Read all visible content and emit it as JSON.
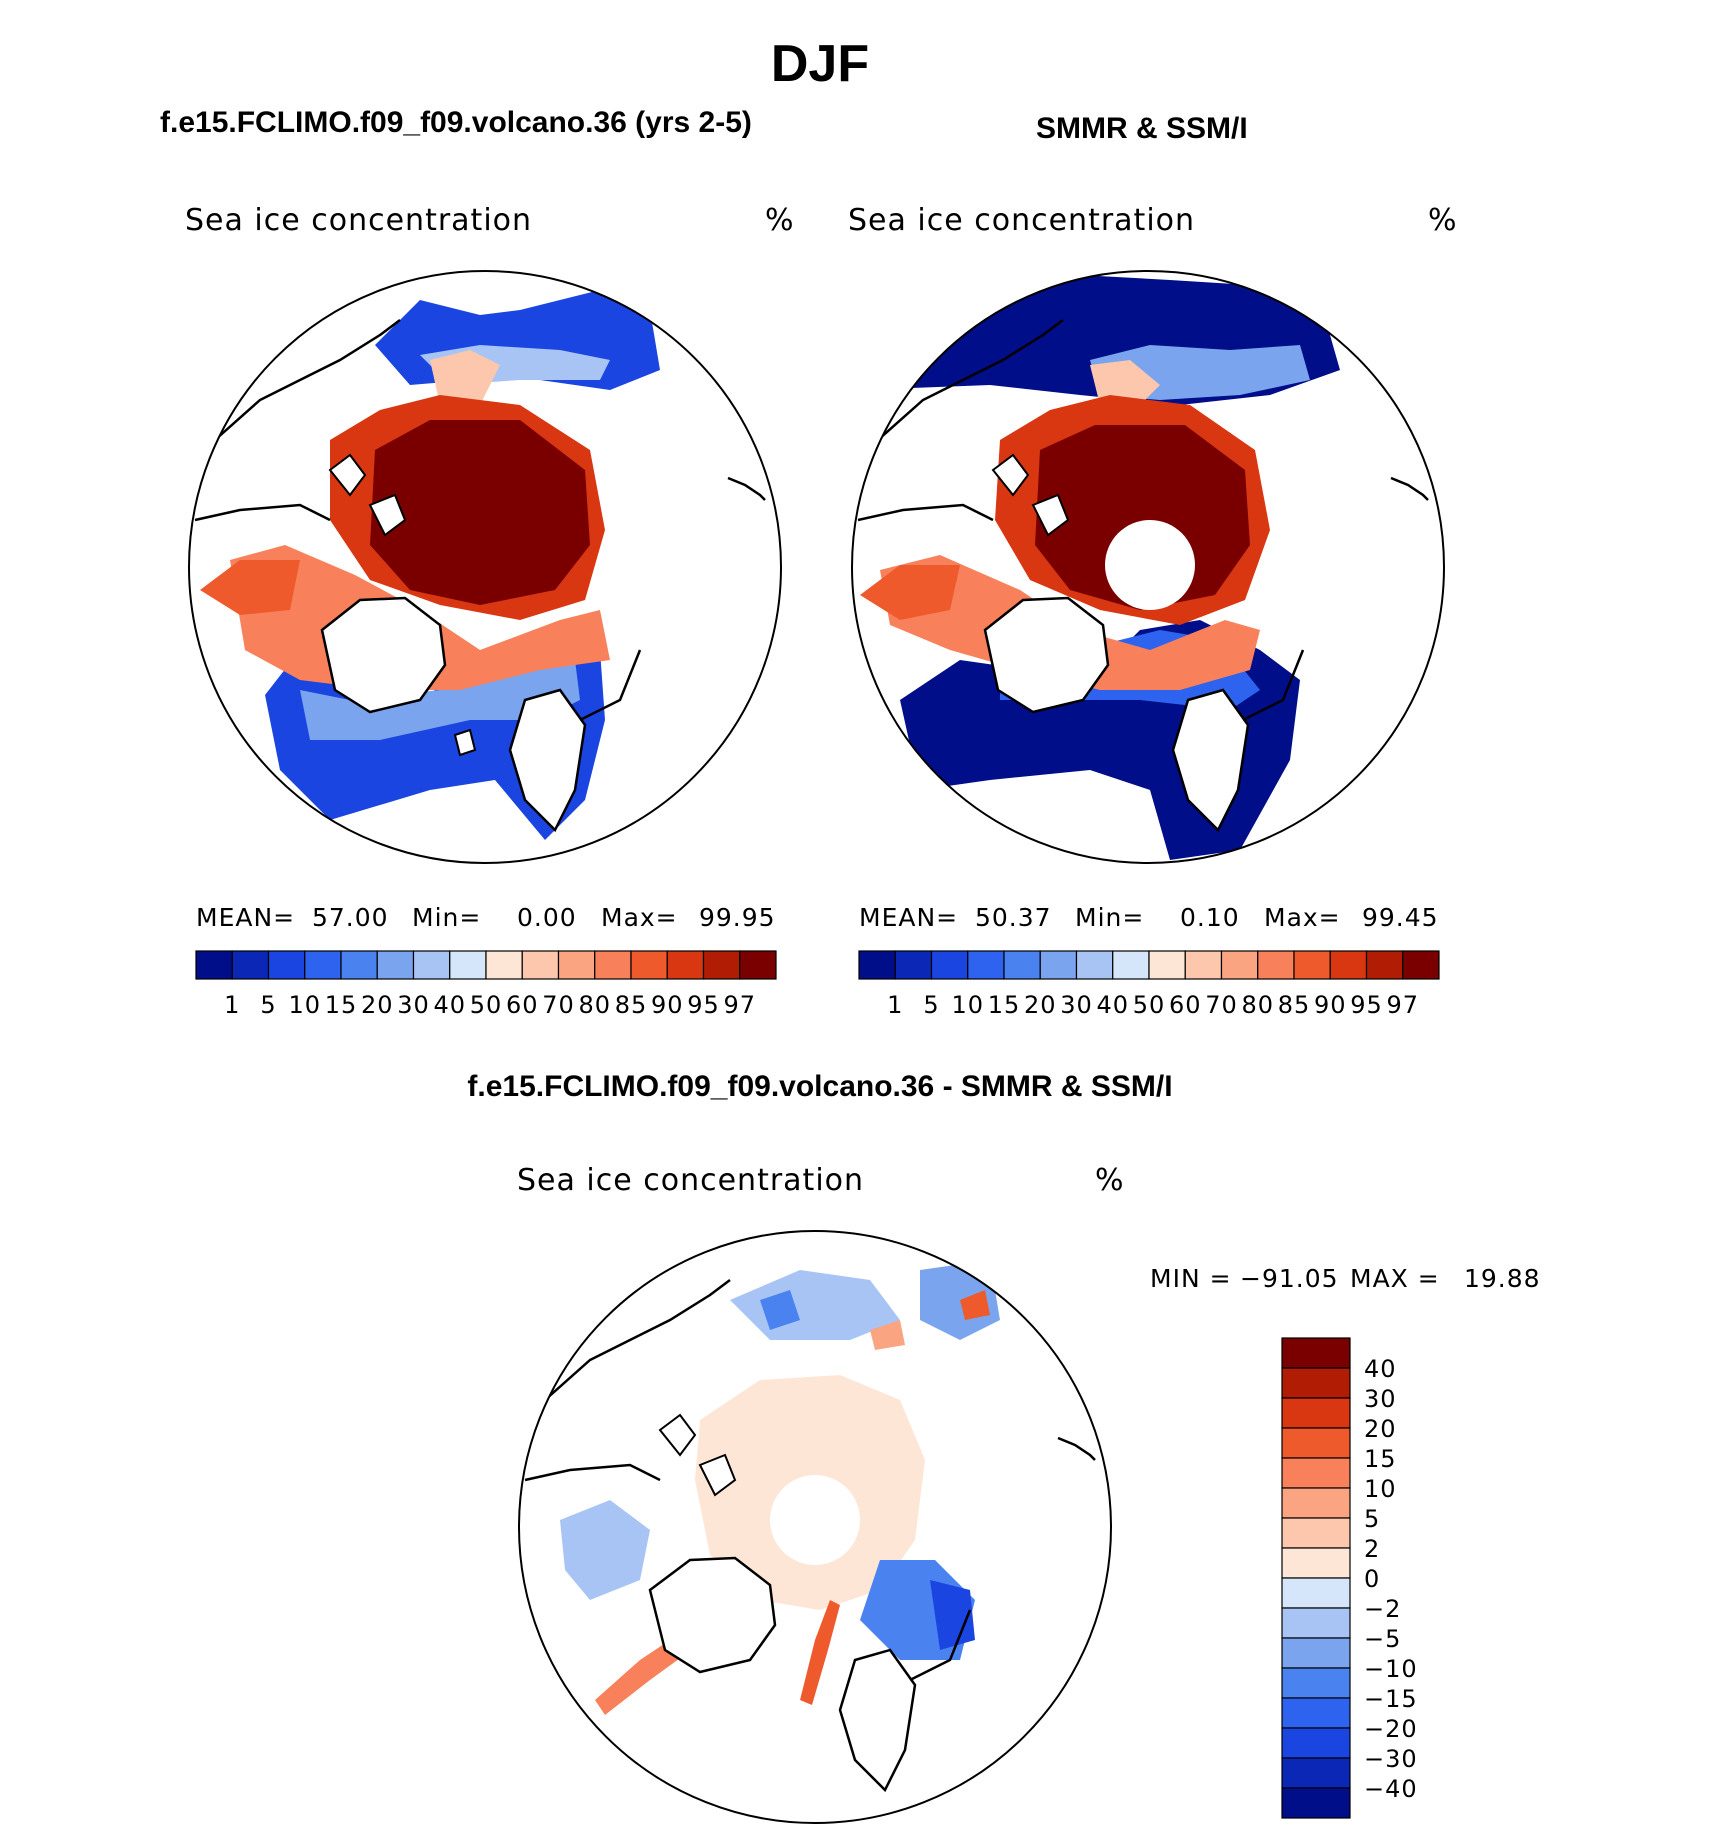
{
  "figure_title": "DJF",
  "colors": {
    "continent": "#ffffff",
    "coast": "#000000",
    "abs_scale": [
      "#000e8a",
      "#0a27b5",
      "#1a45e0",
      "#2d63ee",
      "#4a82f0",
      "#7aa4ee",
      "#a8c4f5",
      "#d5e6fa",
      "#fde6d6",
      "#fcc7ac",
      "#fba482",
      "#f8805a",
      "#ef5a2c",
      "#d93712",
      "#b01d04",
      "#7a0000"
    ],
    "diff_scale": [
      "#000e8a",
      "#0a27b5",
      "#1a45e0",
      "#2d63ee",
      "#4a82f0",
      "#7aa4ee",
      "#a8c4f5",
      "#d5e6fa",
      "#fde6d6",
      "#fcc7ac",
      "#fba482",
      "#f8805a",
      "#ef5a2c",
      "#d93712",
      "#b01d04",
      "#7a0000"
    ]
  },
  "chart_data": [
    {
      "type": "heatmap",
      "projection": "north-polar-stereographic",
      "title": "f.e15.FCLIMO.f09_f09.volcano.36 (yrs 2-5)",
      "variable": "Sea ice concentration",
      "units": "%",
      "stats": {
        "mean_label": "MEAN=",
        "mean": "57.00",
        "min_label": "Min=",
        "min": "0.00",
        "max_label": "Max=",
        "max": "99.95"
      },
      "colorbar": {
        "orientation": "horizontal",
        "levels": [
          "1",
          "5",
          "10",
          "15",
          "20",
          "30",
          "40",
          "50",
          "60",
          "70",
          "80",
          "85",
          "90",
          "95",
          "97"
        ]
      },
      "pole_hole": false
    },
    {
      "type": "heatmap",
      "projection": "north-polar-stereographic",
      "title": "SMMR & SSM/I",
      "variable": "Sea ice concentration",
      "units": "%",
      "stats": {
        "mean_label": "MEAN=",
        "mean": "50.37",
        "min_label": "Min=",
        "min": "0.10",
        "max_label": "Max=",
        "max": "99.45"
      },
      "colorbar": {
        "orientation": "horizontal",
        "levels": [
          "1",
          "5",
          "10",
          "15",
          "20",
          "30",
          "40",
          "50",
          "60",
          "70",
          "80",
          "85",
          "90",
          "95",
          "97"
        ]
      },
      "pole_hole": true
    },
    {
      "type": "heatmap",
      "projection": "north-polar-stereographic",
      "title": "f.e15.FCLIMO.f09_f09.volcano.36 - SMMR & SSM/I",
      "variable": "Sea ice concentration",
      "units": "%",
      "stats": {
        "min_label": "MIN =",
        "min": "−91.05",
        "max_label": "MAX =",
        "max": "19.88"
      },
      "colorbar": {
        "orientation": "vertical",
        "levels": [
          "40",
          "30",
          "20",
          "15",
          "10",
          "5",
          "2",
          "0",
          "−2",
          "−5",
          "−10",
          "−15",
          "−20",
          "−30",
          "−40"
        ]
      },
      "pole_hole": true
    }
  ]
}
